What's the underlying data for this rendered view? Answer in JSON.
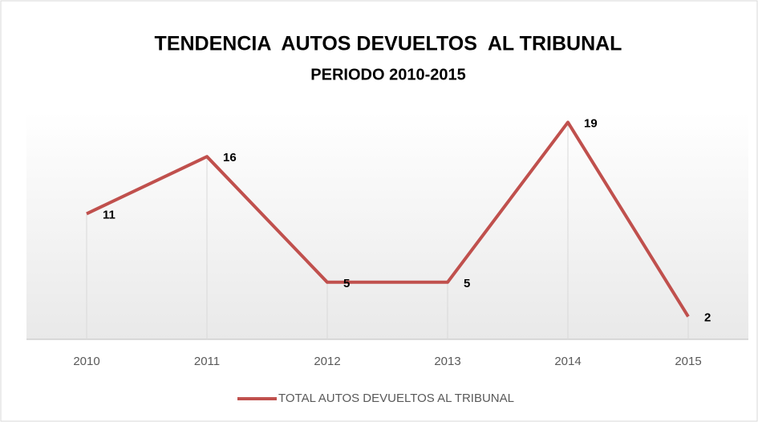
{
  "chart_data": {
    "type": "line",
    "title": "TENDENCIA  AUTOS DEVUELTOS  AL TRIBUNAL",
    "subtitle": "PERIODO 2010-2015",
    "categories": [
      "2010",
      "2011",
      "2012",
      "2013",
      "2014",
      "2015"
    ],
    "series": [
      {
        "name": "TOTAL AUTOS DEVUELTOS AL TRIBUNAL",
        "color": "#c0504d",
        "values": [
          11,
          16,
          5,
          5,
          19,
          2
        ]
      }
    ],
    "ylim": [
      0,
      21
    ],
    "drop_lines": true,
    "legend": "bottom"
  }
}
